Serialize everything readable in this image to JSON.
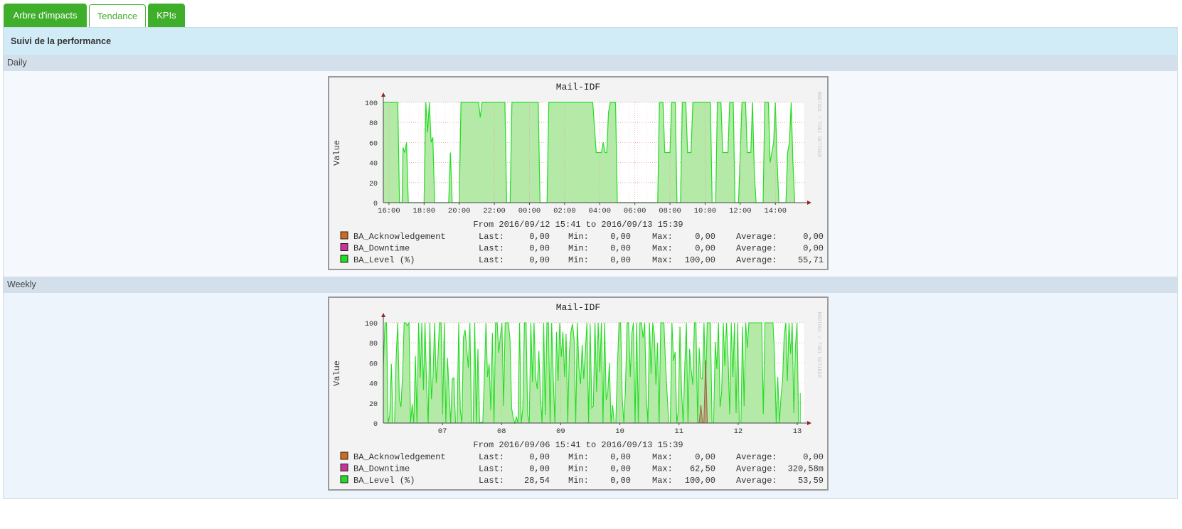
{
  "tabs": [
    {
      "label": "Arbre d'impacts",
      "style": "green"
    },
    {
      "label": "Tendance",
      "style": "active"
    },
    {
      "label": "KPIs",
      "style": "green"
    }
  ],
  "panel": {
    "title": "Suivi de la performance"
  },
  "sections": [
    {
      "heading": "Daily"
    },
    {
      "heading": "Weekly"
    }
  ],
  "colors": {
    "accent": "#3fae2a",
    "series_fill": "#b4e9a8",
    "series_line": "#22dd22",
    "ack": "#d2691e",
    "downtime": "#cc3399",
    "level": "#22dd22"
  },
  "chart_data": [
    {
      "type": "area",
      "title": "Mail-IDF",
      "ylabel": "Value",
      "ylim": [
        0,
        100
      ],
      "yticks": [
        0,
        20,
        40,
        60,
        80,
        100
      ],
      "xticks": [
        "16:00",
        "18:00",
        "20:00",
        "22:00",
        "00:00",
        "02:00",
        "04:00",
        "06:00",
        "08:00",
        "10:00",
        "12:00",
        "14:00"
      ],
      "x_range_hours": [
        15.68,
        39.65
      ],
      "watermark": "RRDTOOL / TOBI OETIKER",
      "period": "From 2016/09/12 15:41 to 2016/09/13 15:39",
      "series": [
        {
          "name": "BA_Level (%)",
          "points": [
            [
              15.7,
              100
            ],
            [
              16.5,
              100
            ],
            [
              16.6,
              0
            ],
            [
              16.75,
              0
            ],
            [
              16.8,
              55
            ],
            [
              16.9,
              50
            ],
            [
              17.0,
              60
            ],
            [
              17.1,
              0
            ],
            [
              17.2,
              0
            ],
            [
              18.0,
              0
            ],
            [
              18.1,
              100
            ],
            [
              18.2,
              70
            ],
            [
              18.3,
              100
            ],
            [
              18.4,
              60
            ],
            [
              18.5,
              65
            ],
            [
              18.6,
              0
            ],
            [
              19.4,
              0
            ],
            [
              19.5,
              50
            ],
            [
              19.6,
              0
            ],
            [
              20.0,
              0
            ],
            [
              20.1,
              100
            ],
            [
              21.1,
              100
            ],
            [
              21.2,
              85
            ],
            [
              21.3,
              100
            ],
            [
              22.6,
              100
            ],
            [
              22.7,
              0
            ],
            [
              22.9,
              0
            ],
            [
              23.0,
              100
            ],
            [
              24.5,
              100
            ],
            [
              24.6,
              0
            ],
            [
              25.0,
              0
            ],
            [
              25.1,
              100
            ],
            [
              27.6,
              100
            ],
            [
              27.8,
              50
            ],
            [
              28.1,
              50
            ],
            [
              28.2,
              60
            ],
            [
              28.3,
              50
            ],
            [
              28.4,
              50
            ],
            [
              28.5,
              90
            ],
            [
              28.6,
              100
            ],
            [
              28.9,
              100
            ],
            [
              29.0,
              0
            ],
            [
              31.3,
              0
            ],
            [
              31.4,
              100
            ],
            [
              31.6,
              100
            ],
            [
              31.7,
              50
            ],
            [
              32.0,
              50
            ],
            [
              32.1,
              100
            ],
            [
              32.3,
              100
            ],
            [
              32.4,
              0
            ],
            [
              32.6,
              0
            ],
            [
              32.7,
              100
            ],
            [
              32.9,
              100
            ],
            [
              33.0,
              50
            ],
            [
              33.2,
              50
            ],
            [
              33.3,
              100
            ],
            [
              34.3,
              100
            ],
            [
              34.4,
              0
            ],
            [
              34.6,
              0
            ],
            [
              34.7,
              100
            ],
            [
              34.9,
              100
            ],
            [
              35.0,
              50
            ],
            [
              35.3,
              50
            ],
            [
              35.4,
              100
            ],
            [
              35.6,
              100
            ],
            [
              35.7,
              0
            ],
            [
              35.9,
              0
            ],
            [
              36.0,
              50
            ],
            [
              36.1,
              100
            ],
            [
              36.3,
              100
            ],
            [
              36.4,
              50
            ],
            [
              36.6,
              50
            ],
            [
              36.7,
              100
            ],
            [
              36.8,
              30
            ],
            [
              36.9,
              0
            ],
            [
              37.3,
              0
            ],
            [
              37.4,
              100
            ],
            [
              37.6,
              100
            ],
            [
              37.7,
              40
            ],
            [
              37.8,
              50
            ],
            [
              37.9,
              60
            ],
            [
              38.0,
              100
            ],
            [
              38.1,
              40
            ],
            [
              38.2,
              0
            ],
            [
              38.6,
              0
            ],
            [
              38.7,
              50
            ],
            [
              38.8,
              60
            ],
            [
              38.9,
              100
            ],
            [
              39.0,
              40
            ],
            [
              39.1,
              0
            ]
          ]
        },
        {
          "name": "BA_Acknowledgement",
          "points": []
        },
        {
          "name": "BA_Downtime",
          "points": []
        }
      ],
      "legend": [
        {
          "name": "BA_Acknowledgement",
          "color": "#d2691e",
          "last": "0,00",
          "min": "0,00",
          "max": "0,00",
          "average": "0,00"
        },
        {
          "name": "BA_Downtime",
          "color": "#cc3399",
          "last": "0,00",
          "min": "0,00",
          "max": "0,00",
          "average": "0,00"
        },
        {
          "name": "BA_Level (%)",
          "color": "#22dd22",
          "last": "0,00",
          "min": "0,00",
          "max": "100,00",
          "average": "55,71"
        }
      ]
    },
    {
      "type": "area",
      "title": "Mail-IDF",
      "ylabel": "Value",
      "ylim": [
        0,
        100
      ],
      "yticks": [
        0,
        20,
        40,
        60,
        80,
        100
      ],
      "xticks": [
        "07",
        "08",
        "09",
        "10",
        "11",
        "12",
        "13"
      ],
      "x_range_days": [
        6.0,
        13.12
      ],
      "watermark": "RRDTOOL / TOBI OETIKER",
      "period": "From 2016/09/06 15:41 to 2016/09/13 15:39",
      "series": [
        {
          "name": "BA_Level (%)",
          "seed": 7,
          "values_summary": "dense oscillating 0-100"
        },
        {
          "name": "BA_Downtime",
          "points": [
            [
              11.34,
              0
            ],
            [
              11.37,
              18
            ],
            [
              11.4,
              0
            ],
            [
              11.42,
              0
            ],
            [
              11.45,
              62.5
            ],
            [
              11.48,
              0
            ]
          ]
        }
      ],
      "legend": [
        {
          "name": "BA_Acknowledgement",
          "color": "#d2691e",
          "last": "0,00",
          "min": "0,00",
          "max": "0,00",
          "average": "0,00"
        },
        {
          "name": "BA_Downtime",
          "color": "#cc3399",
          "last": "0,00",
          "min": "0,00",
          "max": "62,50",
          "average": "320,58m"
        },
        {
          "name": "BA_Level (%)",
          "color": "#22dd22",
          "last": "28,54",
          "min": "0,00",
          "max": "100,00",
          "average": "53,59"
        }
      ]
    }
  ]
}
